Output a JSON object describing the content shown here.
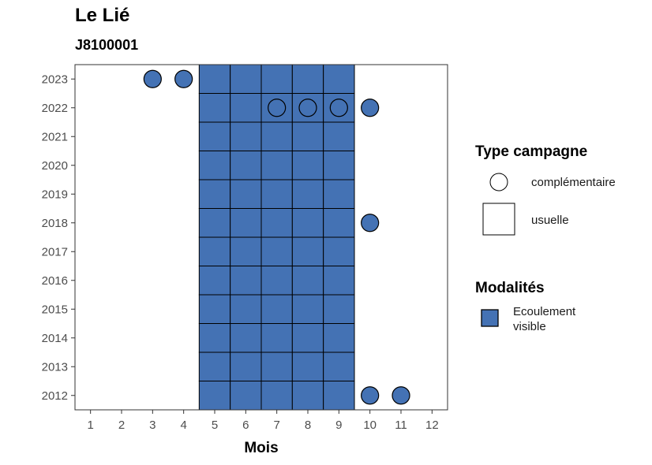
{
  "chart_data": {
    "type": "heatmap",
    "title": "Le Lié",
    "subtitle": "J8100001",
    "xlabel": "Mois",
    "ylabel": "",
    "x_ticks": [
      1,
      2,
      3,
      4,
      5,
      6,
      7,
      8,
      9,
      10,
      11,
      12
    ],
    "y_ticks": [
      2012,
      2013,
      2014,
      2015,
      2016,
      2017,
      2018,
      2019,
      2020,
      2021,
      2022,
      2023
    ],
    "xlim": [
      0.5,
      12.5
    ],
    "ylim": [
      2011.5,
      2023.5
    ],
    "fill_color": "#4472b4",
    "legend": {
      "type_title": "Type campagne",
      "type_entries": [
        "complémentaire",
        "usuelle"
      ],
      "mod_title": "Modalités",
      "mod_entries": [
        [
          "Ecoulement",
          "visible"
        ]
      ]
    },
    "usuelle": {
      "months": [
        5,
        6,
        7,
        8,
        9
      ],
      "years": [
        2012,
        2013,
        2014,
        2015,
        2016,
        2017,
        2018,
        2019,
        2020,
        2021,
        2022,
        2023
      ],
      "modalite": "Ecoulement visible"
    },
    "complementaire": [
      {
        "year": 2023,
        "month": 3,
        "modalite": "Ecoulement visible"
      },
      {
        "year": 2023,
        "month": 4,
        "modalite": "Ecoulement visible"
      },
      {
        "year": 2022,
        "month": 7,
        "modalite": "Ecoulement visible"
      },
      {
        "year": 2022,
        "month": 8,
        "modalite": "Ecoulement visible"
      },
      {
        "year": 2022,
        "month": 9,
        "modalite": "Ecoulement visible"
      },
      {
        "year": 2022,
        "month": 10,
        "modalite": "Ecoulement visible"
      },
      {
        "year": 2018,
        "month": 10,
        "modalite": "Ecoulement visible"
      },
      {
        "year": 2012,
        "month": 10,
        "modalite": "Ecoulement visible"
      },
      {
        "year": 2012,
        "month": 11,
        "modalite": "Ecoulement visible"
      }
    ]
  }
}
